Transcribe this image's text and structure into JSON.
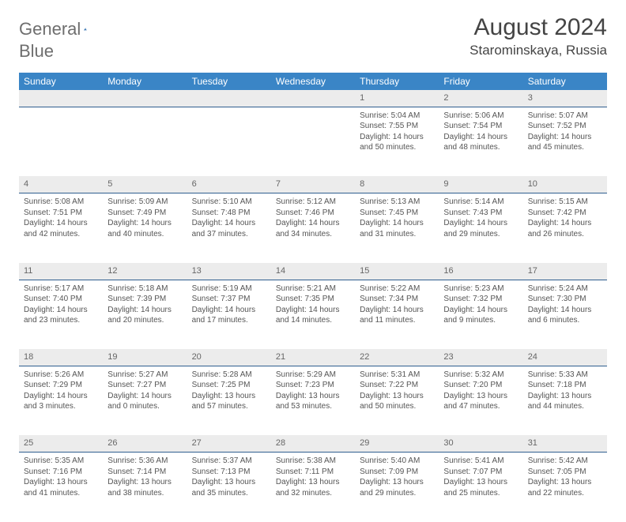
{
  "brand": {
    "part1": "General",
    "part2": "Blue"
  },
  "title": "August 2024",
  "location": "Starominskaya, Russia",
  "colors": {
    "header_bg": "#3a85c6",
    "daynum_bg": "#ececec",
    "rule": "#2f5e8f",
    "text": "#555"
  },
  "day_headers": [
    "Sunday",
    "Monday",
    "Tuesday",
    "Wednesday",
    "Thursday",
    "Friday",
    "Saturday"
  ],
  "weeks": [
    [
      null,
      null,
      null,
      null,
      {
        "n": "1",
        "sr": "5:04 AM",
        "ss": "7:55 PM",
        "dl": "14 hours and 50 minutes."
      },
      {
        "n": "2",
        "sr": "5:06 AM",
        "ss": "7:54 PM",
        "dl": "14 hours and 48 minutes."
      },
      {
        "n": "3",
        "sr": "5:07 AM",
        "ss": "7:52 PM",
        "dl": "14 hours and 45 minutes."
      }
    ],
    [
      {
        "n": "4",
        "sr": "5:08 AM",
        "ss": "7:51 PM",
        "dl": "14 hours and 42 minutes."
      },
      {
        "n": "5",
        "sr": "5:09 AM",
        "ss": "7:49 PM",
        "dl": "14 hours and 40 minutes."
      },
      {
        "n": "6",
        "sr": "5:10 AM",
        "ss": "7:48 PM",
        "dl": "14 hours and 37 minutes."
      },
      {
        "n": "7",
        "sr": "5:12 AM",
        "ss": "7:46 PM",
        "dl": "14 hours and 34 minutes."
      },
      {
        "n": "8",
        "sr": "5:13 AM",
        "ss": "7:45 PM",
        "dl": "14 hours and 31 minutes."
      },
      {
        "n": "9",
        "sr": "5:14 AM",
        "ss": "7:43 PM",
        "dl": "14 hours and 29 minutes."
      },
      {
        "n": "10",
        "sr": "5:15 AM",
        "ss": "7:42 PM",
        "dl": "14 hours and 26 minutes."
      }
    ],
    [
      {
        "n": "11",
        "sr": "5:17 AM",
        "ss": "7:40 PM",
        "dl": "14 hours and 23 minutes."
      },
      {
        "n": "12",
        "sr": "5:18 AM",
        "ss": "7:39 PM",
        "dl": "14 hours and 20 minutes."
      },
      {
        "n": "13",
        "sr": "5:19 AM",
        "ss": "7:37 PM",
        "dl": "14 hours and 17 minutes."
      },
      {
        "n": "14",
        "sr": "5:21 AM",
        "ss": "7:35 PM",
        "dl": "14 hours and 14 minutes."
      },
      {
        "n": "15",
        "sr": "5:22 AM",
        "ss": "7:34 PM",
        "dl": "14 hours and 11 minutes."
      },
      {
        "n": "16",
        "sr": "5:23 AM",
        "ss": "7:32 PM",
        "dl": "14 hours and 9 minutes."
      },
      {
        "n": "17",
        "sr": "5:24 AM",
        "ss": "7:30 PM",
        "dl": "14 hours and 6 minutes."
      }
    ],
    [
      {
        "n": "18",
        "sr": "5:26 AM",
        "ss": "7:29 PM",
        "dl": "14 hours and 3 minutes."
      },
      {
        "n": "19",
        "sr": "5:27 AM",
        "ss": "7:27 PM",
        "dl": "14 hours and 0 minutes."
      },
      {
        "n": "20",
        "sr": "5:28 AM",
        "ss": "7:25 PM",
        "dl": "13 hours and 57 minutes."
      },
      {
        "n": "21",
        "sr": "5:29 AM",
        "ss": "7:23 PM",
        "dl": "13 hours and 53 minutes."
      },
      {
        "n": "22",
        "sr": "5:31 AM",
        "ss": "7:22 PM",
        "dl": "13 hours and 50 minutes."
      },
      {
        "n": "23",
        "sr": "5:32 AM",
        "ss": "7:20 PM",
        "dl": "13 hours and 47 minutes."
      },
      {
        "n": "24",
        "sr": "5:33 AM",
        "ss": "7:18 PM",
        "dl": "13 hours and 44 minutes."
      }
    ],
    [
      {
        "n": "25",
        "sr": "5:35 AM",
        "ss": "7:16 PM",
        "dl": "13 hours and 41 minutes."
      },
      {
        "n": "26",
        "sr": "5:36 AM",
        "ss": "7:14 PM",
        "dl": "13 hours and 38 minutes."
      },
      {
        "n": "27",
        "sr": "5:37 AM",
        "ss": "7:13 PM",
        "dl": "13 hours and 35 minutes."
      },
      {
        "n": "28",
        "sr": "5:38 AM",
        "ss": "7:11 PM",
        "dl": "13 hours and 32 minutes."
      },
      {
        "n": "29",
        "sr": "5:40 AM",
        "ss": "7:09 PM",
        "dl": "13 hours and 29 minutes."
      },
      {
        "n": "30",
        "sr": "5:41 AM",
        "ss": "7:07 PM",
        "dl": "13 hours and 25 minutes."
      },
      {
        "n": "31",
        "sr": "5:42 AM",
        "ss": "7:05 PM",
        "dl": "13 hours and 22 minutes."
      }
    ]
  ],
  "labels": {
    "sunrise": "Sunrise:",
    "sunset": "Sunset:",
    "daylight": "Daylight:"
  }
}
